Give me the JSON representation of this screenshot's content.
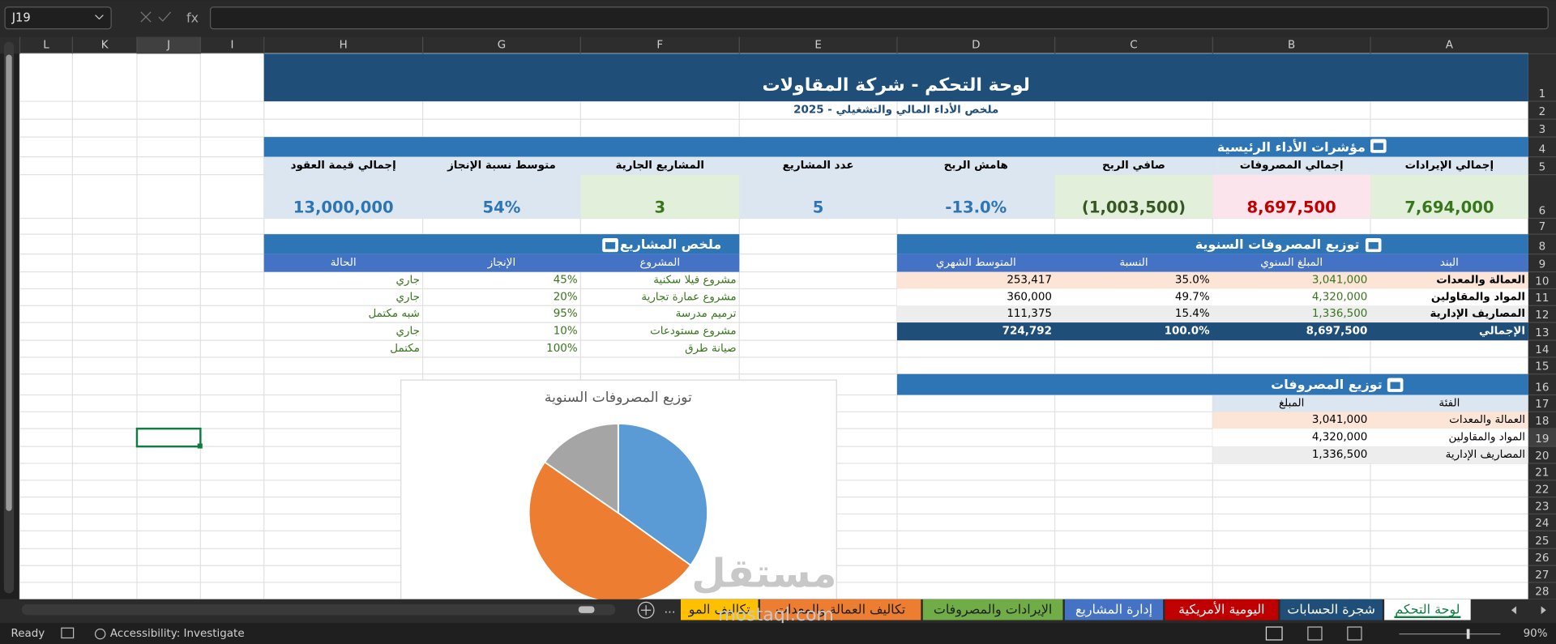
{
  "app": {
    "name_box": "J19",
    "formula_icon": "fx",
    "status": "Ready",
    "accessibility": "Accessibility: Investigate",
    "zoom": "90%",
    "more_tabs": "..."
  },
  "column_headers": [
    "L",
    "K",
    "J",
    "I",
    "H",
    "G",
    "F",
    "E",
    "D",
    "C",
    "B",
    "A"
  ],
  "row_numbers": [
    1,
    2,
    3,
    4,
    5,
    6,
    7,
    8,
    9,
    10,
    11,
    12,
    13,
    14,
    15,
    16,
    17,
    18,
    19,
    20,
    21,
    22,
    23,
    24,
    25,
    26,
    27,
    28
  ],
  "dashboard": {
    "title": "لوحة التحكم - شركة المقاولات",
    "subtitle": "ملخص الأداء المالي والتشغيلي - 2025",
    "kpi_title": "مؤشرات الأداء الرئيسية",
    "kpis": [
      {
        "label": "إجمالي الإيرادات",
        "value": "7,694,000"
      },
      {
        "label": "إجمالي المصروفات",
        "value": "8,697,500"
      },
      {
        "label": "صافي الربح",
        "value": "(1,003,500)"
      },
      {
        "label": "هامش الربح",
        "value": "-13.0%"
      },
      {
        "label": "عدد المشاريع",
        "value": "5"
      },
      {
        "label": "المشاريع الجارية",
        "value": "3"
      },
      {
        "label": "متوسط نسبة الإنجاز",
        "value": "54%"
      },
      {
        "label": "إجمالي قيمة العقود",
        "value": "13,000,000"
      }
    ],
    "expenses": {
      "title": "توزيع المصروفات السنوية",
      "headers": [
        "البند",
        "المبلغ السنوي",
        "النسبة",
        "المتوسط الشهري"
      ],
      "rows": [
        [
          "العمالة والمعدات",
          "3,041,000",
          "35.0%",
          "253,417"
        ],
        [
          "المواد والمقاولين",
          "4,320,000",
          "49.7%",
          "360,000"
        ],
        [
          "المصاريف الإدارية",
          "1,336,500",
          "15.4%",
          "111,375"
        ]
      ],
      "total": [
        "الإجمالي",
        "8,697,500",
        "100.0%",
        "724,792"
      ]
    },
    "projects": {
      "title": "ملخص المشاريع",
      "headers": [
        "المشروع",
        "الإنجاز",
        "الحالة"
      ],
      "rows": [
        [
          "مشروع فيلا سكنية",
          "45%",
          "جاري"
        ],
        [
          "مشروع عمارة تجارية",
          "20%",
          "جاري"
        ],
        [
          "ترميم مدرسة",
          "95%",
          "شبه مكتمل"
        ],
        [
          "مشروع مستودعات",
          "10%",
          "جاري"
        ],
        [
          "صيانة طرق",
          "100%",
          "مكتمل"
        ]
      ]
    },
    "breakdown": {
      "title": "توزيع المصروفات",
      "headers": [
        "الفئة",
        "المبلغ"
      ],
      "rows": [
        [
          "العمالة والمعدات",
          "3,041,000"
        ],
        [
          "المواد والمقاولين",
          "4,320,000"
        ],
        [
          "المصاريف الإدارية",
          "1,336,500"
        ]
      ]
    }
  },
  "chart_data": {
    "type": "pie",
    "title": "توزيع المصروفات السنوية",
    "values": [
      3041000,
      4320000,
      1336500
    ],
    "colors": [
      "#5b9bd5",
      "#ed7d31",
      "#a5a5a5"
    ]
  },
  "sheet_tabs": [
    "لوحة التحكم",
    "شجرة الحسابات",
    "اليومية الأمريكية",
    "إدارة المشاريع",
    "الإيرادات والمصروفات",
    "تكاليف العمالة والمعدات",
    "تكاليف المو"
  ],
  "watermark": [
    "مستقل",
    "mostaql.com"
  ]
}
